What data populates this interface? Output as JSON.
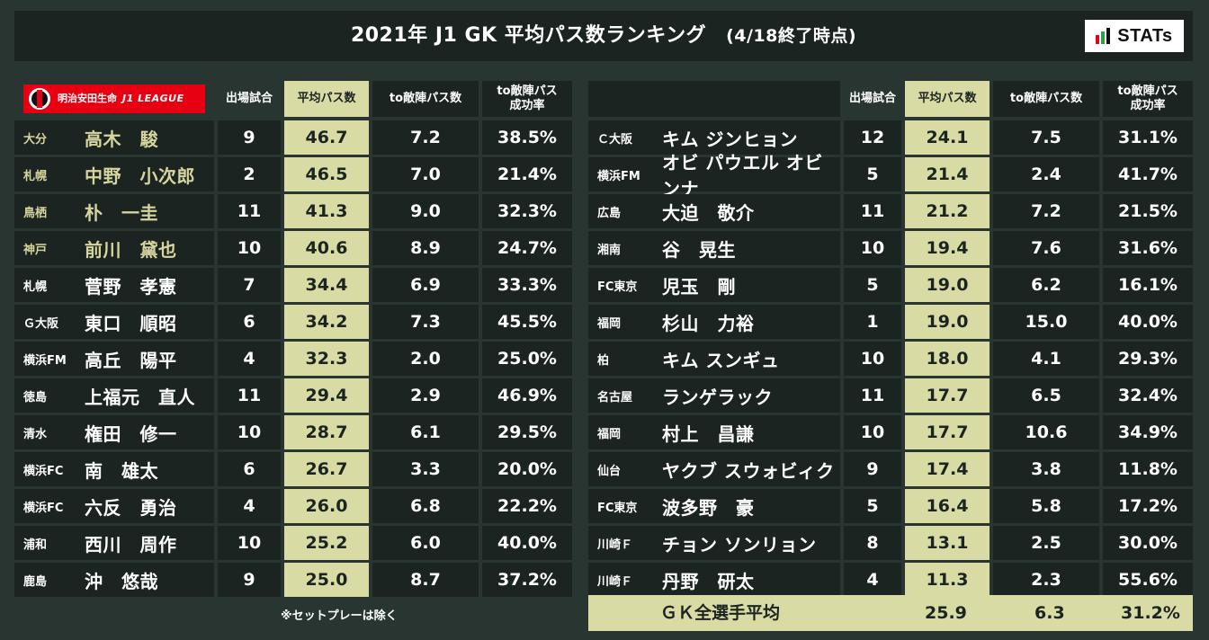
{
  "title": {
    "main": "2021年 J1 GK 平均パス数ランキング",
    "sub": "(4/18終了時点)"
  },
  "logo": {
    "stats_text": "STATs",
    "bar_colors": [
      "#e60012",
      "#2aa04a",
      "#111111"
    ],
    "jleague_jp": "明治安田生命",
    "jleague_en": "J1 LEAGUE",
    "jleague_color": "#e60012"
  },
  "colors": {
    "background": "#283530",
    "cell": "#1b2421",
    "highlight": "#d9dba4",
    "gold_text": "#d6d59e"
  },
  "headers": {
    "apps": "出場試合",
    "avg_pass": "平均パス数",
    "to_opp_pass": "to敵陣パス数",
    "to_opp_rate_line1": "to敵陣パス",
    "to_opp_rate_line2": "成功率"
  },
  "left_rows": [
    {
      "club": "大分",
      "name": "高木　駿",
      "apps": "9",
      "avg": "46.7",
      "opp": "7.2",
      "rate": "38.5%",
      "top": true
    },
    {
      "club": "札幌",
      "name": "中野　小次郎",
      "apps": "2",
      "avg": "46.5",
      "opp": "7.0",
      "rate": "21.4%",
      "top": true
    },
    {
      "club": "鳥栖",
      "name": "朴　一圭",
      "apps": "11",
      "avg": "41.3",
      "opp": "9.0",
      "rate": "32.3%",
      "top": true
    },
    {
      "club": "神戸",
      "name": "前川　黛也",
      "apps": "10",
      "avg": "40.6",
      "opp": "8.9",
      "rate": "24.7%",
      "top": true
    },
    {
      "club": "札幌",
      "name": "菅野　孝憲",
      "apps": "7",
      "avg": "34.4",
      "opp": "6.9",
      "rate": "33.3%",
      "top": false
    },
    {
      "club": "Ｇ大阪",
      "name": "東口　順昭",
      "apps": "6",
      "avg": "34.2",
      "opp": "7.3",
      "rate": "45.5%",
      "top": false
    },
    {
      "club": "横浜FM",
      "name": "高丘　陽平",
      "apps": "4",
      "avg": "32.3",
      "opp": "2.0",
      "rate": "25.0%",
      "top": false
    },
    {
      "club": "徳島",
      "name": "上福元　直人",
      "apps": "11",
      "avg": "29.4",
      "opp": "2.9",
      "rate": "46.9%",
      "top": false
    },
    {
      "club": "清水",
      "name": "権田　修一",
      "apps": "10",
      "avg": "28.7",
      "opp": "6.1",
      "rate": "29.5%",
      "top": false
    },
    {
      "club": "横浜FC",
      "name": "南　雄太",
      "apps": "6",
      "avg": "26.7",
      "opp": "3.3",
      "rate": "20.0%",
      "top": false
    },
    {
      "club": "横浜FC",
      "name": "六反　勇治",
      "apps": "4",
      "avg": "26.0",
      "opp": "6.8",
      "rate": "22.2%",
      "top": false
    },
    {
      "club": "浦和",
      "name": "西川　周作",
      "apps": "10",
      "avg": "25.2",
      "opp": "6.0",
      "rate": "40.0%",
      "top": false
    },
    {
      "club": "鹿島",
      "name": "沖　悠哉",
      "apps": "9",
      "avg": "25.0",
      "opp": "8.7",
      "rate": "37.2%",
      "top": false
    }
  ],
  "right_rows": [
    {
      "club": "Ｃ大阪",
      "name": "キム ジンヒョン",
      "apps": "12",
      "avg": "24.1",
      "opp": "7.5",
      "rate": "31.1%"
    },
    {
      "club": "横浜FM",
      "name": "オビ パウエル オビンナ",
      "apps": "5",
      "avg": "21.4",
      "opp": "2.4",
      "rate": "41.7%"
    },
    {
      "club": "広島",
      "name": "大迫　敬介",
      "apps": "11",
      "avg": "21.2",
      "opp": "7.2",
      "rate": "21.5%"
    },
    {
      "club": "湘南",
      "name": "谷　晃生",
      "apps": "10",
      "avg": "19.4",
      "opp": "7.6",
      "rate": "31.6%"
    },
    {
      "club": "FC東京",
      "name": "児玉　剛",
      "apps": "5",
      "avg": "19.0",
      "opp": "6.2",
      "rate": "16.1%"
    },
    {
      "club": "福岡",
      "name": "杉山　力裕",
      "apps": "1",
      "avg": "19.0",
      "opp": "15.0",
      "rate": "40.0%"
    },
    {
      "club": "柏",
      "name": "キム スンギュ",
      "apps": "10",
      "avg": "18.0",
      "opp": "4.1",
      "rate": "29.3%"
    },
    {
      "club": "名古屋",
      "name": "ランゲラック",
      "apps": "11",
      "avg": "17.7",
      "opp": "6.5",
      "rate": "32.4%"
    },
    {
      "club": "福岡",
      "name": "村上　昌謙",
      "apps": "10",
      "avg": "17.7",
      "opp": "10.6",
      "rate": "34.9%"
    },
    {
      "club": "仙台",
      "name": "ヤクブ スウォビィク",
      "apps": "9",
      "avg": "17.4",
      "opp": "3.8",
      "rate": "11.8%"
    },
    {
      "club": "FC東京",
      "name": "波多野　豪",
      "apps": "5",
      "avg": "16.4",
      "opp": "5.8",
      "rate": "17.2%"
    },
    {
      "club": "川崎Ｆ",
      "name": "チョン ソンリョン",
      "apps": "8",
      "avg": "13.1",
      "opp": "2.5",
      "rate": "30.0%"
    },
    {
      "club": "川崎Ｆ",
      "name": "丹野　研太",
      "apps": "4",
      "avg": "11.3",
      "opp": "2.3",
      "rate": "55.6%"
    }
  ],
  "average": {
    "label": "ＧＫ全選手平均",
    "avg": "25.9",
    "opp": "6.3",
    "rate": "31.2%"
  },
  "note": "※セットプレーは除く"
}
